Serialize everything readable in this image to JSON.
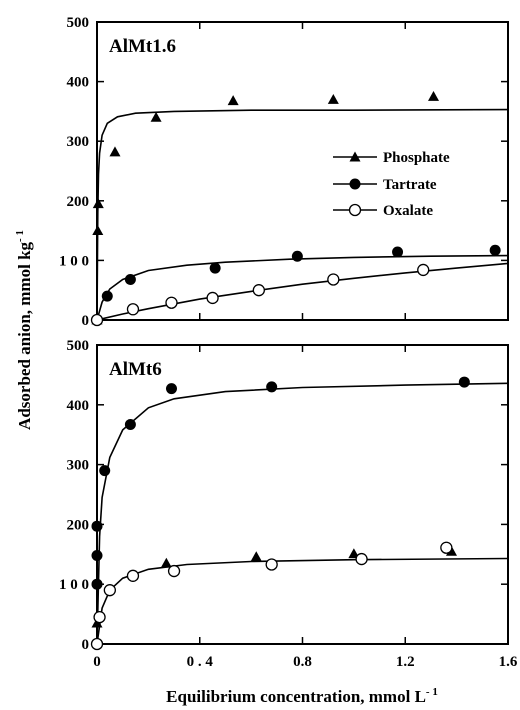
{
  "chart_data": [
    {
      "type": "scatter",
      "title": "AlMt1.6",
      "xlabel": "Equilibrium concentration, mmol L⁻¹",
      "ylabel": "Adsorbed anion, mmol kg⁻¹",
      "xlim": [
        0,
        1.6
      ],
      "ylim": [
        0,
        500
      ],
      "grid": false,
      "legend": "right",
      "series": [
        {
          "name": "Phosphate",
          "marker": "filled-triangle",
          "points": [
            [
              0.0,
              0
            ],
            [
              0.003,
              150
            ],
            [
              0.005,
              195
            ],
            [
              0.07,
              282
            ],
            [
              0.23,
              340
            ],
            [
              0.53,
              368
            ],
            [
              0.92,
              370
            ],
            [
              1.31,
              375
            ]
          ],
          "fit": [
            [
              0.0,
              0
            ],
            [
              0.003,
              180
            ],
            [
              0.006,
              245
            ],
            [
              0.01,
              280
            ],
            [
              0.02,
              310
            ],
            [
              0.04,
              330
            ],
            [
              0.08,
              341
            ],
            [
              0.15,
              347
            ],
            [
              0.3,
              350
            ],
            [
              0.6,
              352
            ],
            [
              1.0,
              352
            ],
            [
              1.6,
              353
            ]
          ]
        },
        {
          "name": "Tartrate",
          "marker": "filled-circle",
          "points": [
            [
              0.0,
              0
            ],
            [
              0.04,
              40
            ],
            [
              0.13,
              68
            ],
            [
              0.46,
              87
            ],
            [
              0.78,
              107
            ],
            [
              1.17,
              114
            ],
            [
              1.55,
              117
            ]
          ],
          "fit": [
            [
              0.0,
              0
            ],
            [
              0.02,
              30
            ],
            [
              0.05,
              52
            ],
            [
              0.1,
              68
            ],
            [
              0.2,
              83
            ],
            [
              0.35,
              92
            ],
            [
              0.5,
              97
            ],
            [
              0.75,
              102
            ],
            [
              1.0,
              105
            ],
            [
              1.3,
              107
            ],
            [
              1.6,
              108
            ]
          ]
        },
        {
          "name": "Oxalate",
          "marker": "open-circle",
          "points": [
            [
              0.0,
              0
            ],
            [
              0.14,
              18
            ],
            [
              0.29,
              29
            ],
            [
              0.45,
              37
            ],
            [
              0.63,
              50
            ],
            [
              0.92,
              68
            ],
            [
              1.27,
              84
            ]
          ],
          "fit": [
            [
              0.0,
              0
            ],
            [
              0.1,
              10
            ],
            [
              0.2,
              19
            ],
            [
              0.4,
              35
            ],
            [
              0.6,
              48
            ],
            [
              0.8,
              60
            ],
            [
              1.0,
              70
            ],
            [
              1.2,
              79
            ],
            [
              1.4,
              87
            ],
            [
              1.6,
              95
            ]
          ]
        }
      ]
    },
    {
      "type": "scatter",
      "title": "AlMt6",
      "xlabel": "Equilibrium concentration, mmol L⁻¹",
      "ylabel": "Adsorbed anion, mmol kg⁻¹",
      "xlim": [
        0,
        1.6
      ],
      "ylim": [
        0,
        500
      ],
      "grid": false,
      "series": [
        {
          "name": "Tartrate",
          "marker": "filled-circle",
          "points": [
            [
              0.0,
              0
            ],
            [
              0.0,
              100
            ],
            [
              0.0,
              148
            ],
            [
              0.0,
              197
            ],
            [
              0.03,
              290
            ],
            [
              0.13,
              367
            ],
            [
              0.29,
              427
            ],
            [
              0.68,
              430
            ],
            [
              1.43,
              438
            ]
          ],
          "fit": [
            [
              0.0,
              0
            ],
            [
              0.01,
              180
            ],
            [
              0.02,
              245
            ],
            [
              0.05,
              312
            ],
            [
              0.1,
              358
            ],
            [
              0.2,
              395
            ],
            [
              0.3,
              410
            ],
            [
              0.5,
              422
            ],
            [
              0.8,
              429
            ],
            [
              1.2,
              433
            ],
            [
              1.6,
              436
            ]
          ]
        },
        {
          "name": "Phosphate",
          "marker": "filled-triangle",
          "points": [
            [
              0.0,
              35
            ],
            [
              0.27,
              135
            ],
            [
              0.62,
              146
            ],
            [
              1.0,
              151
            ],
            [
              1.38,
              155
            ]
          ],
          "fit": [
            [
              0.0,
              0
            ],
            [
              0.02,
              60
            ],
            [
              0.05,
              90
            ],
            [
              0.1,
              110
            ],
            [
              0.2,
              125
            ],
            [
              0.35,
              133
            ],
            [
              0.6,
              138
            ],
            [
              1.0,
              141
            ],
            [
              1.6,
              143
            ]
          ]
        },
        {
          "name": "Oxalate",
          "marker": "open-circle",
          "points": [
            [
              0.0,
              0
            ],
            [
              0.01,
              45
            ],
            [
              0.05,
              90
            ],
            [
              0.14,
              114
            ],
            [
              0.3,
              122
            ],
            [
              0.68,
              133
            ],
            [
              1.03,
              142
            ],
            [
              1.36,
              161
            ]
          ]
        }
      ]
    }
  ],
  "xticks": [
    {
      "value": 0,
      "label": "0"
    },
    {
      "value": 0.4,
      "label": "0 . 4"
    },
    {
      "value": 0.8,
      "label": "0.8"
    },
    {
      "value": 1.2,
      "label": "1.2"
    },
    {
      "value": 1.6,
      "label": "1.6"
    }
  ],
  "yticks": [
    {
      "value": 0,
      "label": "0"
    },
    {
      "value": 100,
      "label": "1 0 0"
    },
    {
      "value": 200,
      "label": "200"
    },
    {
      "value": 300,
      "label": "300"
    },
    {
      "value": 400,
      "label": "400"
    },
    {
      "value": 500,
      "label": "500"
    }
  ],
  "legend_entries": [
    "Phosphate",
    "Tartrate",
    "Oxalate"
  ],
  "xlabel_text": "Equilibrium concentration, mmol L",
  "xlabel_sup": "- 1",
  "ylabel_text": "Adsorbed anion, mmol kg",
  "ylabel_sup": "- 1",
  "colors": {
    "ink": "#000000",
    "background": "#ffffff"
  }
}
